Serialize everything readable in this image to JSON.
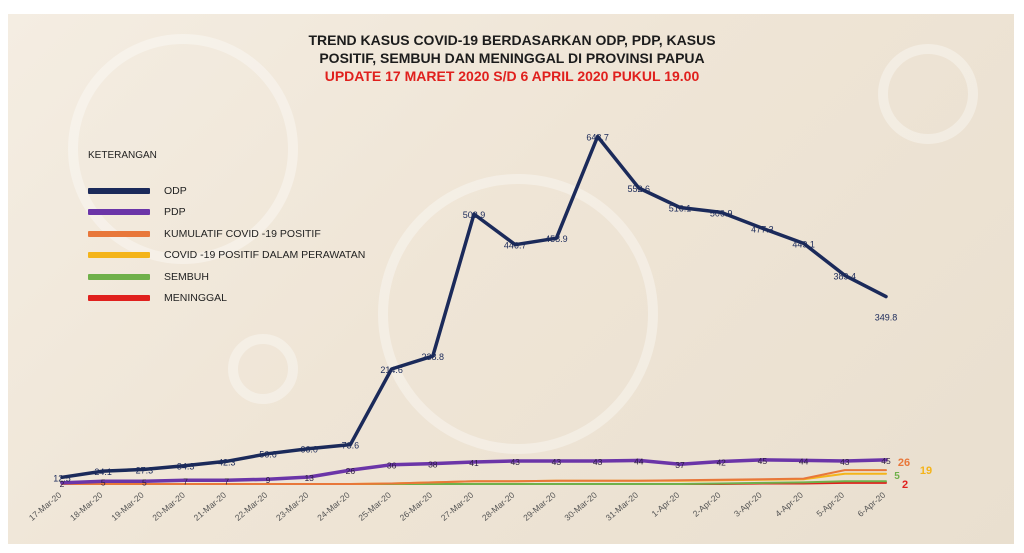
{
  "title_line1": "TREND KASUS COVID-19 BERDASARKAN ODP, PDP, KASUS",
  "title_line2": "POSITIF, SEMBUH DAN MENINGGAL DI PROVINSI PAPUA",
  "update_line": "UPDATE 17 MARET 2020 S/D 6 APRIL 2020 PUKUL 19.00",
  "legend_title": "KETERANGAN",
  "colors": {
    "odp": "#1b2a5a",
    "pdp": "#6b35a8",
    "kumulatif": "#e8773a",
    "perawatan": "#f4b41a",
    "sembuh": "#6fb04a",
    "meninggal": "#e0201d"
  },
  "chart_data": {
    "type": "line",
    "x": [
      "17-Mar-20",
      "18-Mar-20",
      "19-Mar-20",
      "20-Mar-20",
      "21-Mar-20",
      "22-Mar-20",
      "23-Mar-20",
      "24-Mar-20",
      "25-Mar-20",
      "26-Mar-20",
      "27-Mar-20",
      "28-Mar-20",
      "29-Mar-20",
      "30-Mar-20",
      "31-Mar-20",
      "1-Apr-20",
      "2-Apr-20",
      "3-Apr-20",
      "4-Apr-20",
      "5-Apr-20",
      "6-Apr-20"
    ],
    "series": [
      {
        "name": "ODP",
        "key": "odp",
        "values": [
          12.5,
          24.1,
          27.3,
          34.3,
          42.3,
          56.6,
          66.0,
          73.6,
          214.6,
          238.8,
          503.9,
          446.7,
          458.9,
          648.7,
          552.6,
          516.1,
          506.9,
          477.3,
          449.1,
          389.4,
          349.8
        ],
        "labels": [
          "12.5",
          "24.1",
          "27.3",
          "34.3",
          "42.3",
          "56.6",
          "66.0",
          "73.6",
          "214.6",
          "238.8",
          "503.9",
          "446.7",
          "458.9",
          "648.7",
          "552.6",
          "516.1",
          "506.9",
          "477.3",
          "449.1",
          "389.4",
          "349.8"
        ]
      },
      {
        "name": "PDP",
        "key": "pdp",
        "values": [
          2,
          5,
          5,
          7,
          7,
          9,
          13,
          26,
          36,
          38,
          41,
          43,
          43,
          43,
          44,
          37,
          42,
          45,
          44,
          43,
          45
        ],
        "labels": [
          "2",
          "5",
          "5",
          "7",
          "7",
          "9",
          "13",
          "26",
          "36",
          "38",
          "41",
          "43",
          "43",
          "43",
          "44",
          "37",
          "42",
          "45",
          "44",
          "43",
          "45"
        ]
      },
      {
        "name": "KUMULATIF COVID -19 POSITIF",
        "key": "kumulatif",
        "values": [
          0,
          0,
          0,
          0,
          0,
          0,
          0,
          0,
          1,
          3,
          5,
          5,
          6,
          6,
          6,
          7,
          8,
          9,
          10,
          26,
          26
        ],
        "end_label": "26"
      },
      {
        "name": "COVID -19 POSITIF DALAM PERAWATAN",
        "key": "perawatan",
        "values": [
          0,
          0,
          0,
          0,
          0,
          0,
          0,
          0,
          1,
          3,
          5,
          5,
          6,
          6,
          6,
          6,
          7,
          8,
          9,
          19,
          19
        ],
        "end_label": "19"
      },
      {
        "name": "SEMBUH",
        "key": "sembuh",
        "values": [
          0,
          0,
          0,
          0,
          0,
          0,
          0,
          0,
          0,
          0,
          0,
          0,
          0,
          0,
          0,
          0,
          1,
          2,
          3,
          5,
          5
        ],
        "end_label": "5"
      },
      {
        "name": "MENINGGAL",
        "key": "meninggal",
        "values": [
          0,
          0,
          0,
          0,
          0,
          0,
          0,
          0,
          0,
          0,
          0,
          0,
          0,
          0,
          0,
          0,
          0,
          1,
          1,
          2,
          2
        ],
        "end_label": "2"
      }
    ],
    "ylim": [
      0,
      700
    ],
    "grid": false,
    "legend_position": "left"
  }
}
